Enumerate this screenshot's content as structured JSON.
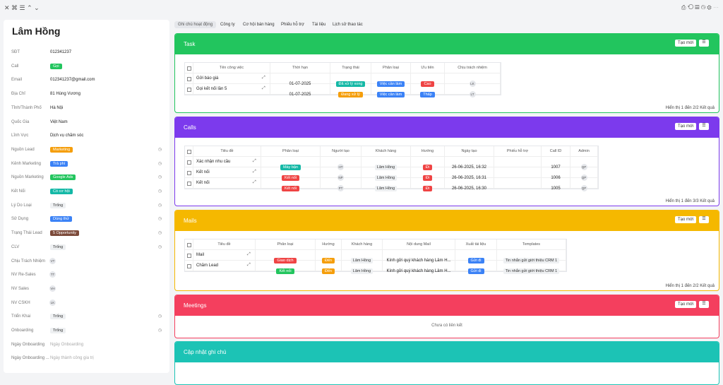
{
  "left_panel": {
    "name": "Lâm Hồng",
    "fields": [
      {
        "label": "SĐT",
        "value": "012341237"
      },
      {
        "label": "Call",
        "value": "Gọi",
        "color": "#22c55e"
      },
      {
        "label": "Email",
        "value": "012341237@gmail.com"
      },
      {
        "label": "Địa Chỉ",
        "value": "81 Hùng Vương"
      },
      {
        "label": "Tỉnh/Thành Phố",
        "value": "Hà Nội"
      },
      {
        "label": "Quốc Gia",
        "value": "Việt Nam"
      },
      {
        "label": "Lĩnh Vực",
        "value": "Dịch vụ chăm sóc"
      },
      {
        "label": "Nguồn Lead",
        "value": "Marketing",
        "color": "#f59e0b",
        "history": true
      },
      {
        "label": "Kênh Marketing",
        "value": "Trả phí",
        "color": "#3b82f6",
        "history": true
      },
      {
        "label": "Nguồn Marketing",
        "value": "Google Ads",
        "color": "#22c55e",
        "history": true
      },
      {
        "label": "Kết Nối",
        "value": "Có cơ hội",
        "color": "#14b8a6",
        "history": true
      },
      {
        "label": "Lý Do Loại",
        "value": "Trống",
        "grey": true,
        "history": true
      },
      {
        "label": "Sử Dụng",
        "value": "Dùng thử",
        "color": "#3b82f6",
        "history": true
      },
      {
        "label": "Trạng Thái Lead",
        "value": "5 Opportunity",
        "color": "#7c4a3a",
        "history": true
      },
      {
        "label": "CLV",
        "value": "Trống",
        "grey": true,
        "history": true
      },
      {
        "label": "Chịu Trách Nhiệm",
        "avatar": "VT"
      },
      {
        "label": "NV Re-Sales",
        "avatar": "TT"
      },
      {
        "label": "NV Sales",
        "avatar": "VH"
      },
      {
        "label": "NV CSKH",
        "avatar": "LK"
      },
      {
        "label": "Triển Khai",
        "value": "Trống",
        "grey": true,
        "history": true
      },
      {
        "label": "Onboarding",
        "value": "Trống",
        "grey": true,
        "history": true
      },
      {
        "label": "Ngày Onboarding",
        "placeholder": "Ngày Onboarding"
      },
      {
        "label": "Ngày Onboarding ...",
        "placeholder": "Ngày thành công gia trị"
      }
    ]
  },
  "tabs": [
    "Ghi chú hoạt động",
    "Công ty",
    "Cơ hội bán hàng",
    "Phiếu hỗ trợ",
    "Tài liệu",
    "Lịch sử thao tác"
  ],
  "sections": [
    {
      "title": "Task",
      "color": "#22c55e",
      "button": "Tạo mới",
      "columns": [
        "Tên công việc",
        "Thời hạn",
        "Trạng thái",
        "Phân loại",
        "Ưu tiên",
        "Chịu trách nhiệm"
      ],
      "rows": [
        [
          "Gửi báo giá",
          "01-07-2025",
          {
            "tag": "Đã xử lý xong",
            "color": "#14b8a6"
          },
          {
            "tag": "Việc cần làm",
            "color": "#3b82f6"
          },
          {
            "tag": "Cao",
            "color": "#ef4444"
          },
          {
            "avatar": "LK"
          }
        ],
        [
          "Gọi kết nối lần 5",
          "01-07-2025",
          {
            "tag": "Đang xử lý",
            "color": "#f59e0b"
          },
          {
            "tag": "Việc cần làm",
            "color": "#3b82f6"
          },
          {
            "tag": "Thấp",
            "color": "#3b82f6"
          },
          {
            "avatar": "LT"
          }
        ]
      ],
      "footer": "Hiển thị 1 đến 2/2 Kết quả"
    },
    {
      "title": "Calls",
      "color": "#7c3aed",
      "button": "Tạo mới",
      "columns": [
        "Tiêu đề",
        "Phân loại",
        "Người tạo",
        "Khách hàng",
        "Hướng",
        "Ngày tạo",
        "Phiếu hỗ trợ",
        "Call ID",
        "Admin"
      ],
      "rows": [
        [
          "Xác nhận nhu cầu",
          {
            "tag": "Máy bận",
            "color": "#14b8a6"
          },
          {
            "avatar": "HT"
          },
          {
            "chip": "Lâm Hồng"
          },
          {
            "tag": "Đi",
            "color": "#ef4444"
          },
          "26-06-2025, 16:32",
          null,
          1007,
          {
            "avatar": "QP"
          }
        ],
        [
          "Kết nối",
          {
            "tag": "Kết nối",
            "color": "#ef4444"
          },
          {
            "avatar": "NP"
          },
          {
            "chip": "Lâm Hồng"
          },
          {
            "tag": "Đi",
            "color": "#ef4444"
          },
          "26-06-2025, 16:31",
          null,
          1006,
          {
            "avatar": "QP"
          }
        ],
        [
          "Kết nối",
          {
            "tag": "Kết nối",
            "color": "#ef4444"
          },
          {
            "avatar": "PT"
          },
          {
            "chip": "Lâm Hồng"
          },
          {
            "tag": "Đi",
            "color": "#ef4444"
          },
          "26-06-2025, 16:30",
          null,
          1005,
          {
            "avatar": "QP"
          }
        ]
      ],
      "footer": "Hiển thị 1 đến 3/3 Kết quả"
    },
    {
      "title": "Mails",
      "color": "#f5b800",
      "button": "Tạo mới",
      "columns": [
        "Tiêu đề",
        "Phân loại",
        "Hướng",
        "Khách hàng",
        "Nội dung Mail",
        "Xuất tài liệu",
        "Templates"
      ],
      "rows": [
        [
          "Mail",
          {
            "tag": "Giao dịch",
            "color": "#ef4444"
          },
          {
            "tag": "Đến",
            "color": "#f59e0b"
          },
          {
            "chip": "Lâm Hồng"
          },
          "Kính gửi quý khách hàng Lâm H...",
          {
            "tag": "Gửi đi",
            "color": "#3b82f6"
          },
          {
            "chip": "Tin nhắn gửi giới thiệu CRM 1"
          }
        ],
        [
          "Chăm Lead",
          {
            "tag": "Kết nối",
            "color": "#22c55e"
          },
          {
            "tag": "Đến",
            "color": "#f59e0b"
          },
          {
            "chip": "Lâm Hồng"
          },
          "Kính gửi quý khách hàng Lâm H...",
          {
            "tag": "Gửi đi",
            "color": "#3b82f6"
          },
          {
            "chip": "Tin nhắn gửi giới thiệu CRM 1"
          }
        ]
      ],
      "footer": "Hiển thị 1 đến 2/2 Kết quả"
    },
    {
      "title": "Meetings",
      "color": "#f43f5e",
      "button": "Tạo mới",
      "empty": "Chưa có liên kết"
    },
    {
      "title": "Cập nhật ghi chú",
      "color": "#1cc3b5"
    }
  ]
}
